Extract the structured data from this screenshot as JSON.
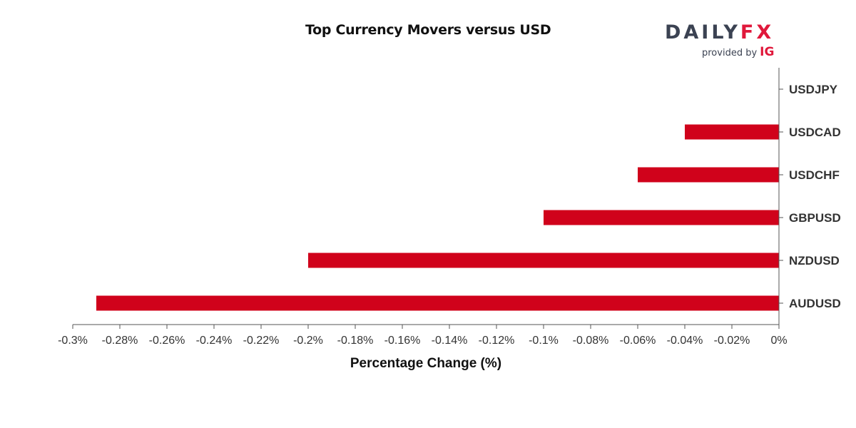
{
  "logo": {
    "daily": "DAILY",
    "fx": "FX",
    "provided_by": "provided by",
    "ig": "IG"
  },
  "colors": {
    "bar": "#d0021b",
    "axis": "#555555",
    "label": "#333333"
  },
  "chart_data": {
    "type": "bar",
    "orientation": "horizontal",
    "title": "Top Currency Movers versus USD",
    "xlabel": "Percentage Change (%)",
    "ylabel": "",
    "categories": [
      "USDJPY",
      "USDCAD",
      "USDCHF",
      "GBPUSD",
      "NZDUSD",
      "AUDUSD"
    ],
    "values": [
      0,
      -0.04,
      -0.06,
      -0.1,
      -0.2,
      -0.29
    ],
    "xlim": [
      -0.3,
      0
    ],
    "xticks": [
      -0.3,
      -0.28,
      -0.26,
      -0.24,
      -0.22,
      -0.2,
      -0.18,
      -0.16,
      -0.14,
      -0.12,
      -0.1,
      -0.08,
      -0.06,
      -0.04,
      -0.02,
      0
    ],
    "xtick_labels": [
      "-0.3%",
      "-0.28%",
      "-0.26%",
      "-0.24%",
      "-0.22%",
      "-0.2%",
      "-0.18%",
      "-0.16%",
      "-0.14%",
      "-0.12%",
      "-0.1%",
      "-0.08%",
      "-0.06%",
      "-0.04%",
      "-0.02%",
      "0%"
    ],
    "grid": false,
    "legend": "none"
  }
}
